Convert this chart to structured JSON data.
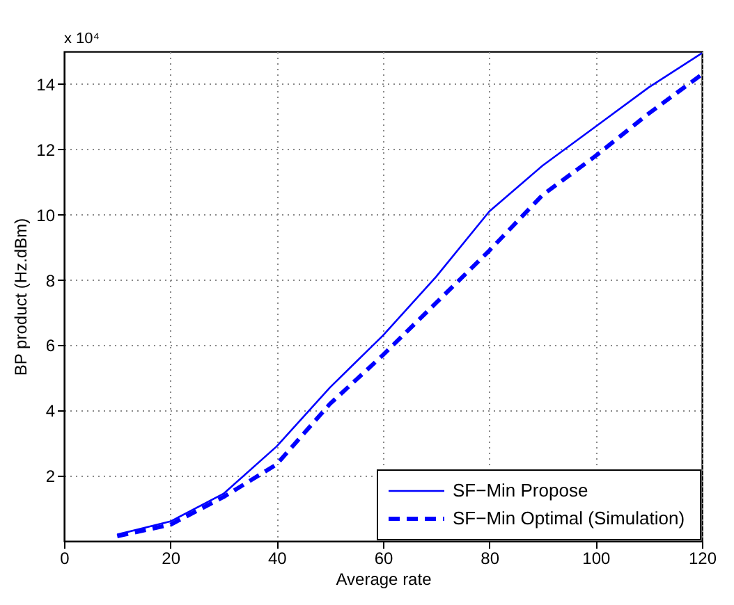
{
  "chart_data": {
    "type": "line",
    "xlabel": "Average rate",
    "ylabel": "BP product (Hz.dBm)",
    "annotations": [
      "x 10⁴"
    ],
    "x": [
      10,
      20,
      30,
      40,
      50,
      60,
      70,
      80,
      90,
      100,
      110,
      120
    ],
    "series": [
      {
        "name": "SF−Min Propose",
        "color": "#0000ff",
        "line_style": "solid",
        "values": [
          0.2,
          0.6,
          1.45,
          2.9,
          4.7,
          6.3,
          8.1,
          10.1,
          11.5,
          12.7,
          13.9,
          14.95
        ]
      },
      {
        "name": "SF−Min Optimal (Simulation)",
        "color": "#0000ff",
        "line_style": "dashed",
        "values": [
          0.15,
          0.5,
          1.35,
          2.35,
          4.2,
          5.7,
          7.3,
          8.9,
          10.6,
          11.8,
          13.1,
          14.3
        ]
      }
    ],
    "xlim": [
      0,
      120
    ],
    "xticks": [
      0,
      20,
      40,
      60,
      80,
      100,
      120
    ],
    "ylim": [
      0,
      15
    ],
    "yticks": [
      2,
      4,
      6,
      8,
      10,
      12,
      14
    ],
    "grid": true,
    "legend": "bottom right",
    "marker": "none"
  }
}
